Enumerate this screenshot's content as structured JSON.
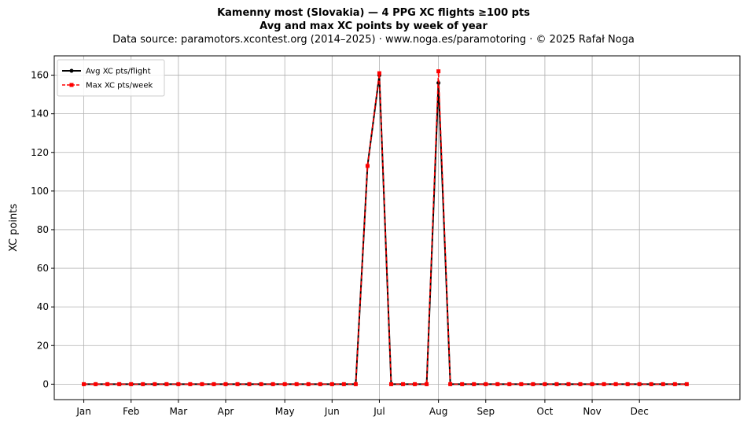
{
  "chart_data": {
    "type": "line",
    "title_lines": [
      "Kamenny most (Slovakia)  —  4 PPG XC flights ≥100 pts",
      "Avg and max XC points by week of year"
    ],
    "subtitle": "Data source: paramotors.xcontest.org (2014–2025)  ·  www.noga.es/paramotoring  ·  © 2025 Rafał Noga",
    "xlabel": "",
    "ylabel": "XC points",
    "x": [
      1,
      2,
      3,
      4,
      5,
      6,
      7,
      8,
      9,
      10,
      11,
      12,
      13,
      14,
      15,
      16,
      17,
      18,
      19,
      20,
      21,
      22,
      23,
      24,
      25,
      26,
      27,
      28,
      29,
      30,
      31,
      32,
      33,
      34,
      35,
      36,
      37,
      38,
      39,
      40,
      41,
      42,
      43,
      44,
      45,
      46,
      47,
      48,
      49,
      50,
      51,
      52
    ],
    "xlim": [
      -1.5,
      56.5
    ],
    "ylim": [
      -8,
      170
    ],
    "yticks": [
      0,
      20,
      40,
      60,
      80,
      100,
      120,
      140,
      160
    ],
    "month_ticks": [
      {
        "label": "Jan",
        "week": 1
      },
      {
        "label": "Feb",
        "week": 5
      },
      {
        "label": "Mar",
        "week": 9
      },
      {
        "label": "Apr",
        "week": 13
      },
      {
        "label": "May",
        "week": 18
      },
      {
        "label": "Jun",
        "week": 22
      },
      {
        "label": "Jul",
        "week": 26
      },
      {
        "label": "Aug",
        "week": 31
      },
      {
        "label": "Sep",
        "week": 35
      },
      {
        "label": "Oct",
        "week": 40
      },
      {
        "label": "Nov",
        "week": 44
      },
      {
        "label": "Dec",
        "week": 48
      }
    ],
    "grid": true,
    "legend_position": "top-left",
    "series": [
      {
        "name": "Avg XC pts/flight",
        "color": "#000000",
        "marker": "circle",
        "line_style": "solid",
        "values": [
          0,
          0,
          0,
          0,
          0,
          0,
          0,
          0,
          0,
          0,
          0,
          0,
          0,
          0,
          0,
          0,
          0,
          0,
          0,
          0,
          0,
          0,
          0,
          0,
          113,
          160,
          0,
          0,
          0,
          0,
          156,
          0,
          0,
          0,
          0,
          0,
          0,
          0,
          0,
          0,
          0,
          0,
          0,
          0,
          0,
          0,
          0,
          0,
          0,
          0,
          0,
          0
        ]
      },
      {
        "name": "Max XC pts/week",
        "color": "#ff0000",
        "marker": "square",
        "line_style": "dashed",
        "values": [
          0,
          0,
          0,
          0,
          0,
          0,
          0,
          0,
          0,
          0,
          0,
          0,
          0,
          0,
          0,
          0,
          0,
          0,
          0,
          0,
          0,
          0,
          0,
          0,
          113,
          161,
          0,
          0,
          0,
          0,
          162,
          0,
          0,
          0,
          0,
          0,
          0,
          0,
          0,
          0,
          0,
          0,
          0,
          0,
          0,
          0,
          0,
          0,
          0,
          0,
          0,
          0
        ]
      }
    ]
  }
}
